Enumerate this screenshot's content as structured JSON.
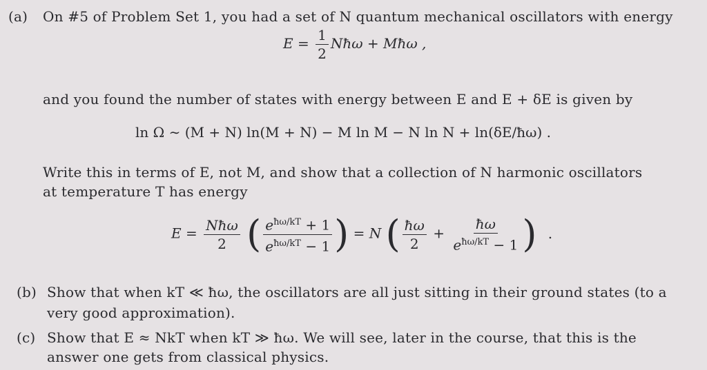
{
  "part_a": {
    "label": "(a)",
    "line1": "On #5 of Problem Set 1, you had a set of N quantum mechanical oscillators with energy",
    "eq1_lhs": "E =",
    "eq1_num": "1",
    "eq1_den": "2",
    "eq1_rest": "Nħω + Mħω ,",
    "line2": "and you found the number of states with energy between E and E + δE is given by",
    "eq2": "ln Ω ∼ (M + N) ln(M + N) − M ln M − N ln N + ln(δE/ħω) .",
    "line3": "Write this in terms of E, not M, and show that a collection of N harmonic oscillators",
    "line4": "at temperature T has energy",
    "eq3": {
      "lhs": "E =",
      "f1_num": "Nħω",
      "f1_den": "2",
      "f2_num": "+ 1",
      "f2_den": "− 1",
      "exp": "ħω/kT",
      "mid": "= N",
      "f3_num": "ħω",
      "f3_den": "2",
      "plus": "+",
      "f4_num": "ħω",
      "f4_den": "− 1",
      "end": "."
    }
  },
  "part_b": {
    "label": "(b)",
    "line1": "Show that when kT ≪ ħω, the oscillators are all just sitting in their ground states (to a",
    "line2": "very good approximation)."
  },
  "part_c": {
    "label": "(c)",
    "line1": "Show that E ≈ NkT when kT ≫ ħω. We will see, later in the course, that this is the",
    "line2": "answer one gets from classical physics."
  }
}
